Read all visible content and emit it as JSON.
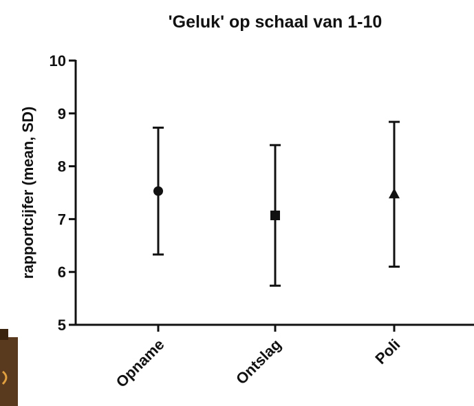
{
  "chart_data": {
    "type": "errorbar",
    "title": "'Geluk' op schaal van 1-10",
    "y_label": "rapportcijfer (mean, SD)",
    "categories": [
      "Opname",
      "Ontslag",
      "Poli"
    ],
    "values": [
      7.53,
      7.07,
      7.47
    ],
    "errors": [
      1.2,
      1.33,
      1.37
    ],
    "markers": [
      "circle",
      "square",
      "triangle"
    ],
    "color": "#111111",
    "ylim": [
      5,
      10
    ],
    "yticks": [
      5,
      6,
      7,
      8,
      9,
      10
    ],
    "grid": false
  }
}
